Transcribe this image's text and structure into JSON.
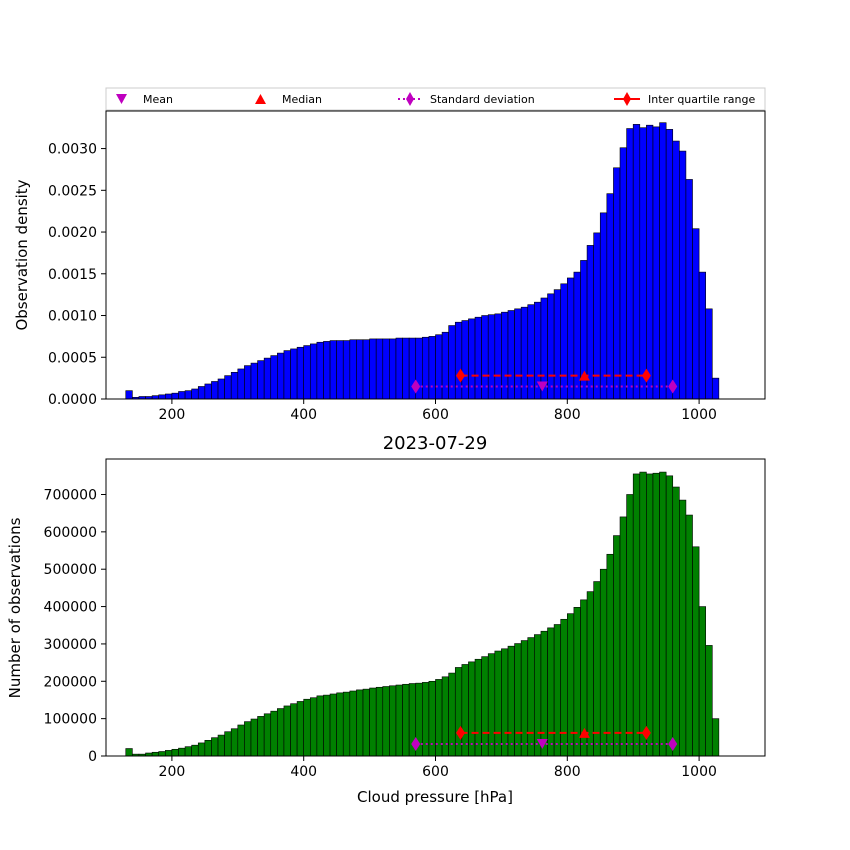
{
  "colors": {
    "top_bars": "#0000ff",
    "bottom_bars": "#008000",
    "bar_edge": "#000000",
    "mean": "#bf00bf",
    "median": "#ff0000",
    "std": "#bf00bf",
    "iqr": "#ff0000"
  },
  "legend": {
    "mean": "Mean",
    "median": "Median",
    "std": "Standard deviation",
    "iqr": "Inter quartile range"
  },
  "chart_data": [
    {
      "type": "bar",
      "panel": "top",
      "title": "",
      "xlabel": "",
      "ylabel": "Observation density",
      "xlim": [
        100,
        1100
      ],
      "ylim": [
        0,
        0.00345
      ],
      "bin_width": 10,
      "xticks": [
        200,
        400,
        600,
        800,
        1000
      ],
      "yticks": [
        0.0,
        0.0005,
        0.001,
        0.0015,
        0.002,
        0.0025,
        0.003
      ],
      "ytick_labels": [
        "0.0000",
        "0.0005",
        "0.0010",
        "0.0015",
        "0.0020",
        "0.0025",
        "0.0030"
      ],
      "x": [
        135,
        145,
        155,
        165,
        175,
        185,
        195,
        205,
        215,
        225,
        235,
        245,
        255,
        265,
        275,
        285,
        295,
        305,
        315,
        325,
        335,
        345,
        355,
        365,
        375,
        385,
        395,
        405,
        415,
        425,
        435,
        445,
        455,
        465,
        475,
        485,
        495,
        505,
        515,
        525,
        535,
        545,
        555,
        565,
        575,
        585,
        595,
        605,
        615,
        625,
        635,
        645,
        655,
        665,
        675,
        685,
        695,
        705,
        715,
        725,
        735,
        745,
        755,
        765,
        775,
        785,
        795,
        805,
        815,
        825,
        835,
        845,
        855,
        865,
        875,
        885,
        895,
        905,
        915,
        925,
        935,
        945,
        955,
        965,
        975,
        985,
        995,
        1005,
        1015,
        1025
      ],
      "values": [
        0.0001,
        2e-05,
        3e-05,
        3e-05,
        4e-05,
        5e-05,
        6e-05,
        7e-05,
        9e-05,
        0.0001,
        0.00012,
        0.00015,
        0.00018,
        0.00021,
        0.00024,
        0.00028,
        0.00032,
        0.00036,
        0.0004,
        0.00043,
        0.00046,
        0.00049,
        0.00052,
        0.00055,
        0.00058,
        0.0006,
        0.00062,
        0.00064,
        0.00066,
        0.00068,
        0.00069,
        0.0007,
        0.0007,
        0.0007,
        0.00071,
        0.00071,
        0.00071,
        0.00072,
        0.00072,
        0.00072,
        0.00072,
        0.00073,
        0.00073,
        0.00073,
        0.00073,
        0.00074,
        0.00075,
        0.00077,
        0.0008,
        0.00088,
        0.00092,
        0.00094,
        0.00096,
        0.00098,
        0.001,
        0.00101,
        0.00102,
        0.00104,
        0.00106,
        0.00108,
        0.0011,
        0.00113,
        0.00116,
        0.00121,
        0.00126,
        0.00131,
        0.00138,
        0.00145,
        0.00152,
        0.00166,
        0.00184,
        0.00199,
        0.00223,
        0.00246,
        0.00277,
        0.00301,
        0.00324,
        0.00329,
        0.00325,
        0.00328,
        0.00326,
        0.00331,
        0.00323,
        0.00309,
        0.00297,
        0.00263,
        0.00204,
        0.00152,
        0.00108,
        0.00025
      ],
      "stats": {
        "mean": 762,
        "median": 826,
        "std_range": [
          570,
          960
        ],
        "iqr_range": [
          638,
          920
        ],
        "std_level": 0.00015,
        "median_level": 0.00028
      }
    },
    {
      "type": "bar",
      "panel": "bottom",
      "title": "2023-07-29",
      "xlabel": "Cloud pressure [hPa]",
      "ylabel": "Number of observations",
      "xlim": [
        100,
        1100
      ],
      "ylim": [
        0,
        795000
      ],
      "bin_width": 10,
      "xticks": [
        200,
        400,
        600,
        800,
        1000
      ],
      "yticks": [
        0,
        100000,
        200000,
        300000,
        400000,
        500000,
        600000,
        700000
      ],
      "ytick_labels": [
        "0",
        "100000",
        "200000",
        "300000",
        "400000",
        "500000",
        "600000",
        "700000"
      ],
      "x": [
        135,
        145,
        155,
        165,
        175,
        185,
        195,
        205,
        215,
        225,
        235,
        245,
        255,
        265,
        275,
        285,
        295,
        305,
        315,
        325,
        335,
        345,
        355,
        365,
        375,
        385,
        395,
        405,
        415,
        425,
        435,
        445,
        455,
        465,
        475,
        485,
        495,
        505,
        515,
        525,
        535,
        545,
        555,
        565,
        575,
        585,
        595,
        605,
        615,
        625,
        635,
        645,
        655,
        665,
        675,
        685,
        695,
        705,
        715,
        725,
        735,
        745,
        755,
        765,
        775,
        785,
        795,
        805,
        815,
        825,
        835,
        845,
        855,
        865,
        875,
        885,
        895,
        905,
        915,
        925,
        935,
        945,
        955,
        965,
        975,
        985,
        995,
        1005,
        1015,
        1025
      ],
      "values": [
        20000,
        5000,
        5000,
        8000,
        10000,
        12000,
        15000,
        18000,
        21000,
        25000,
        29000,
        35000,
        42000,
        49000,
        56000,
        65000,
        73000,
        83000,
        92000,
        99000,
        106000,
        113000,
        120000,
        127000,
        134000,
        140000,
        146000,
        152000,
        156000,
        161000,
        163000,
        166000,
        169000,
        171000,
        174000,
        177000,
        179000,
        182000,
        184000,
        186000,
        188000,
        190000,
        192000,
        194000,
        195000,
        197000,
        200000,
        205000,
        212000,
        222000,
        237000,
        245000,
        252000,
        259000,
        266000,
        274000,
        281000,
        287000,
        294000,
        301000,
        309000,
        317000,
        325000,
        334000,
        343000,
        352000,
        366000,
        381000,
        398000,
        418000,
        440000,
        467000,
        500000,
        540000,
        590000,
        640000,
        700000,
        755000,
        760000,
        755000,
        757000,
        760000,
        750000,
        720000,
        685000,
        645000,
        560000,
        400000,
        296000,
        100000
      ],
      "stats": {
        "mean": 762,
        "median": 826,
        "std_range": [
          570,
          960
        ],
        "iqr_range": [
          638,
          920
        ],
        "std_level": 32000,
        "median_level": 62000
      }
    }
  ]
}
